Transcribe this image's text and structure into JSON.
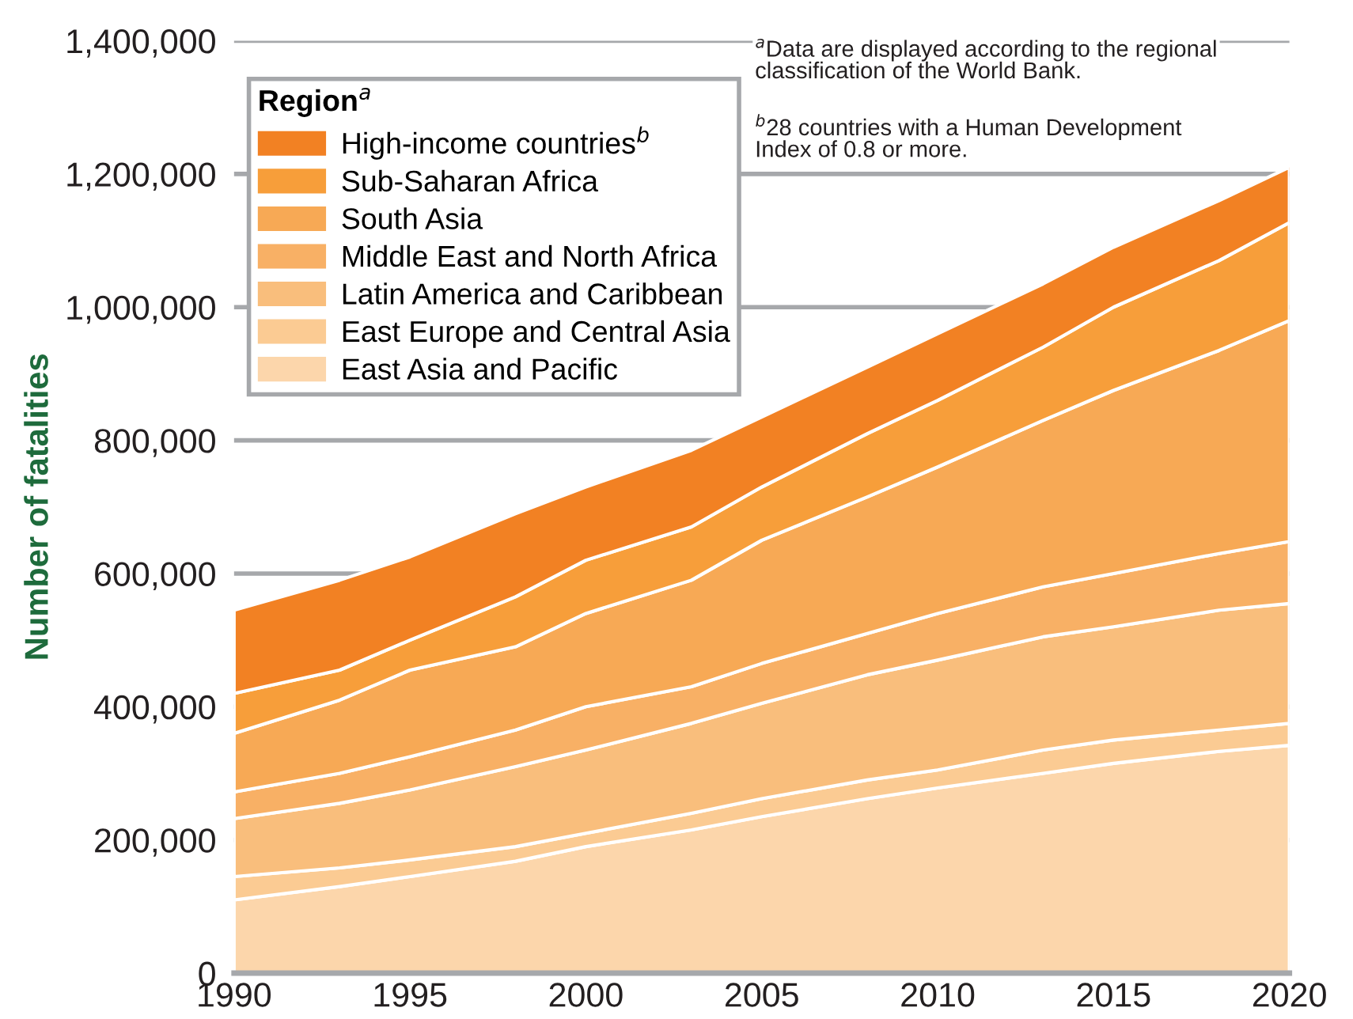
{
  "chart_data": {
    "type": "area",
    "stacked": true,
    "ylabel": "Number of fatalities",
    "legend_title": "Region$^{a}$",
    "x": [
      1990,
      1993,
      1995,
      1998,
      2000,
      2003,
      2005,
      2008,
      2010,
      2013,
      2015,
      2018,
      2020
    ],
    "series": [
      {
        "name": "East Asia and Pacific",
        "color": "#fcd6ab",
        "values": [
          110000,
          130000,
          145000,
          168000,
          190000,
          215000,
          235000,
          262000,
          278000,
          300000,
          315000,
          333000,
          342000
        ]
      },
      {
        "name": "East Europe and Central Asia",
        "color": "#fbcb93",
        "values": [
          35000,
          28000,
          25000,
          22000,
          20000,
          25000,
          27000,
          28000,
          27000,
          35000,
          35000,
          32000,
          33000
        ]
      },
      {
        "name": "Latin America and Caribbean",
        "color": "#f9be7c",
        "values": [
          87000,
          97000,
          105000,
          120000,
          125000,
          135000,
          143000,
          158000,
          165000,
          170000,
          170000,
          180000,
          180000
        ]
      },
      {
        "name": "Middle East and North Africa",
        "color": "#f8b065",
        "values": [
          40000,
          45000,
          50000,
          55000,
          65000,
          55000,
          60000,
          62000,
          70000,
          75000,
          80000,
          85000,
          93000
        ]
      },
      {
        "name": "South Asia",
        "color": "#f7a955",
        "values": [
          88000,
          110000,
          130000,
          125000,
          140000,
          160000,
          185000,
          205000,
          220000,
          250000,
          275000,
          305000,
          332000
        ]
      },
      {
        "name": "Sub-Saharan Africa",
        "color": "#f79e3a",
        "values": [
          60000,
          45000,
          45000,
          75000,
          80000,
          80000,
          80000,
          95000,
          100000,
          110000,
          125000,
          135000,
          147000
        ]
      },
      {
        "name": "High-income countries$^{b}$",
        "color": "#f28123",
        "values": [
          125000,
          135000,
          125000,
          125000,
          110000,
          115000,
          105000,
          100000,
          100000,
          95000,
          90000,
          90000,
          83000
        ]
      }
    ],
    "xlim": [
      1990,
      2020
    ],
    "xticks": [
      1990,
      1995,
      2000,
      2005,
      2010,
      2015,
      2020
    ],
    "ylim": [
      0,
      1400000
    ],
    "yticks": [
      {
        "value": 0,
        "label": "0"
      },
      {
        "value": 200000,
        "label": "200,000"
      },
      {
        "value": 400000,
        "label": "400,000"
      },
      {
        "value": 600000,
        "label": "600,000"
      },
      {
        "value": 800000,
        "label": "800,000"
      },
      {
        "value": 1000000,
        "label": "1,000,000"
      },
      {
        "value": 1200000,
        "label": "1,200,000"
      },
      {
        "value": 1400000,
        "label": "1,400,000"
      }
    ],
    "grid": "y",
    "legend": "top left",
    "annotations": [
      "$^{a}$Data are displayed according to the regional\nclassification of the World Bank.",
      "$^{b}$28 countries with a Human Development\nIndex of 0.8 or more."
    ]
  }
}
